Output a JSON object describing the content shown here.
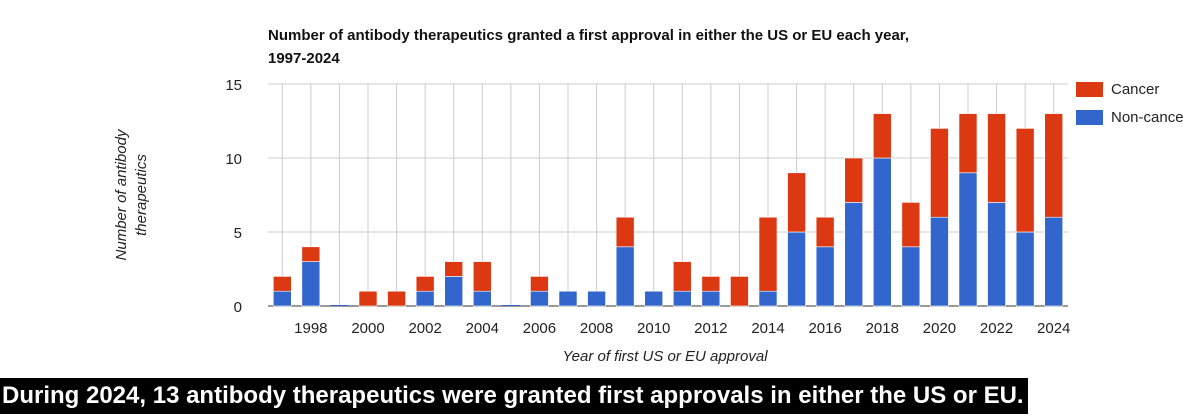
{
  "chart_data": {
    "type": "bar",
    "stacked": true,
    "title": "Number of antibody therapeutics granted a first approval in either the US or EU each year,\n1997-2024",
    "xlabel": "Year of first US or EU approval",
    "ylabel": "Number of antibody\ntherapeutics",
    "ylim": [
      0,
      15
    ],
    "yticks": [
      "0",
      "5",
      "10",
      "15"
    ],
    "grid": true,
    "legend_position": "right",
    "categories": [
      "1997",
      "1998",
      "1999",
      "2000",
      "2001",
      "2002",
      "2003",
      "2004",
      "2005",
      "2006",
      "2007",
      "2008",
      "2009",
      "2010",
      "2011",
      "2012",
      "2013",
      "2014",
      "2015",
      "2016",
      "2017",
      "2018",
      "2019",
      "2020",
      "2021",
      "2022",
      "2023",
      "2024"
    ],
    "xtick_labels": [
      "1998",
      "2000",
      "2002",
      "2004",
      "2006",
      "2008",
      "2010",
      "2012",
      "2014",
      "2016",
      "2018",
      "2020",
      "2022",
      "2024"
    ],
    "series": [
      {
        "name": "Non-cancer",
        "color": "#3366cc",
        "values": [
          1,
          3,
          0,
          0,
          0,
          1,
          2,
          1,
          0,
          1,
          1,
          1,
          4,
          1,
          1,
          1,
          0,
          1,
          5,
          4,
          7,
          10,
          4,
          6,
          9,
          7,
          5,
          6
        ]
      },
      {
        "name": "Cancer",
        "color": "#dc3912",
        "values": [
          1,
          1,
          0,
          1,
          1,
          1,
          1,
          2,
          0,
          1,
          0,
          0,
          2,
          0,
          2,
          1,
          2,
          5,
          4,
          2,
          3,
          3,
          3,
          6,
          4,
          6,
          7,
          7
        ]
      }
    ],
    "legend": {
      "cancer_label": "Cancer",
      "noncancer_label": "Non-cance"
    }
  },
  "caption": "During 2024, 13 antibody therapeutics were granted first approvals in either the US or EU."
}
